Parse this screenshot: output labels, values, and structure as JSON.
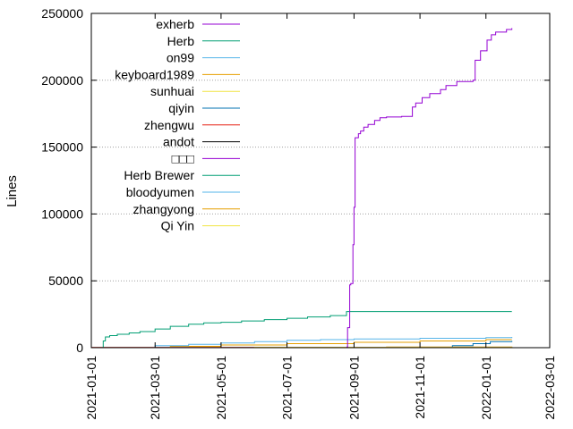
{
  "chart_data": {
    "type": "line",
    "title": "",
    "xlabel": "",
    "ylabel": "Lines",
    "xlim": [
      "2021-01-01",
      "2022-03-01"
    ],
    "ylim": [
      0,
      250000
    ],
    "x_ticks": [
      "2021-01-01",
      "2021-03-01",
      "2021-05-01",
      "2021-07-01",
      "2021-09-01",
      "2021-11-01",
      "2022-01-01",
      "2022-03-01"
    ],
    "y_ticks": [
      0,
      50000,
      100000,
      150000,
      200000,
      250000
    ],
    "grid": "horizontal dotted",
    "legend_position": "top-left",
    "series": [
      {
        "name": "exherb",
        "color": "#9400d3",
        "step": true,
        "x": [
          "2021-08-25",
          "2021-08-26",
          "2021-08-28",
          "2021-08-29",
          "2021-08-31",
          "2021-09-01",
          "2021-09-02",
          "2021-09-05",
          "2021-09-07",
          "2021-09-10",
          "2021-09-14",
          "2021-09-20",
          "2021-09-25",
          "2021-10-01",
          "2021-10-15",
          "2021-10-25",
          "2021-10-28",
          "2021-11-03",
          "2021-11-10",
          "2021-11-20",
          "2021-11-25",
          "2021-12-05",
          "2021-12-20",
          "2021-12-22",
          "2021-12-27",
          "2022-01-02",
          "2022-01-06",
          "2022-01-10",
          "2022-01-20",
          "2022-01-25"
        ],
        "y": [
          500,
          15000,
          47000,
          48000,
          77000,
          105000,
          157000,
          160000,
          162000,
          165000,
          167000,
          170000,
          172000,
          172500,
          173000,
          180000,
          183000,
          187000,
          190000,
          193000,
          196000,
          199000,
          200000,
          215000,
          222000,
          230000,
          234000,
          236000,
          238000,
          239000
        ]
      },
      {
        "name": "Herb",
        "color": "#009e73",
        "step": true,
        "x": [
          "2021-01-10",
          "2021-01-12",
          "2021-01-14",
          "2021-01-18",
          "2021-01-25",
          "2021-02-05",
          "2021-02-15",
          "2021-03-01",
          "2021-03-15",
          "2021-04-01",
          "2021-04-15",
          "2021-05-01",
          "2021-05-20",
          "2021-06-10",
          "2021-07-01",
          "2021-07-20",
          "2021-08-10",
          "2021-08-25",
          "2022-01-25"
        ],
        "y": [
          0,
          5000,
          8000,
          9000,
          10000,
          11000,
          12000,
          14000,
          16000,
          17500,
          18500,
          19000,
          20000,
          21000,
          22000,
          23000,
          24000,
          27000,
          27000
        ]
      },
      {
        "name": "on99",
        "color": "#56b4e9",
        "step": true,
        "x": [
          "2021-01-01",
          "2021-03-01",
          "2021-04-01",
          "2021-05-01",
          "2021-06-01",
          "2021-07-01",
          "2021-08-01",
          "2021-09-01",
          "2021-11-01",
          "2022-01-01",
          "2022-01-25"
        ],
        "y": [
          0,
          1500,
          2500,
          3500,
          4500,
          5500,
          6000,
          6500,
          7000,
          7500,
          8000
        ]
      },
      {
        "name": "keyboard1989",
        "color": "#e69f00",
        "step": true,
        "x": [
          "2021-01-01",
          "2021-03-15",
          "2021-05-01",
          "2021-07-01",
          "2021-09-01",
          "2021-11-01",
          "2022-01-01",
          "2022-01-25"
        ],
        "y": [
          0,
          1000,
          2000,
          3000,
          4000,
          5000,
          6000,
          6000
        ]
      },
      {
        "name": "sunhuai",
        "color": "#f0e442",
        "step": true,
        "x": [
          "2021-01-01",
          "2021-06-01",
          "2022-01-25"
        ],
        "y": [
          0,
          300,
          600
        ]
      },
      {
        "name": "qiyin",
        "color": "#0072b2",
        "step": true,
        "x": [
          "2021-01-01",
          "2021-12-01",
          "2021-12-20",
          "2022-01-05",
          "2022-01-25"
        ],
        "y": [
          0,
          1500,
          3000,
          4500,
          5000
        ]
      },
      {
        "name": "zhengwu",
        "color": "#e51e10",
        "step": true,
        "x": [
          "2021-01-01",
          "2022-01-25"
        ],
        "y": [
          200,
          400
        ]
      },
      {
        "name": "andot",
        "color": "#000000",
        "step": true,
        "x": [
          "2021-01-01",
          "2022-01-25"
        ],
        "y": [
          100,
          200
        ]
      },
      {
        "name": "□□□",
        "color": "#9400d3",
        "step": true,
        "x": [
          "2021-01-01",
          "2022-01-25"
        ],
        "y": [
          0,
          0
        ]
      },
      {
        "name": "Herb Brewer",
        "color": "#009e73",
        "step": true,
        "x": [
          "2021-01-01",
          "2022-01-25"
        ],
        "y": [
          0,
          0
        ]
      },
      {
        "name": "bloodyumen",
        "color": "#56b4e9",
        "step": true,
        "x": [
          "2021-01-01",
          "2022-01-25"
        ],
        "y": [
          0,
          0
        ]
      },
      {
        "name": "zhangyong",
        "color": "#e69f00",
        "step": true,
        "x": [
          "2021-01-01",
          "2021-10-01",
          "2022-01-25"
        ],
        "y": [
          0,
          500,
          800
        ]
      },
      {
        "name": "Qi Yin",
        "color": "#f0e442",
        "step": true,
        "x": [
          "2021-01-01",
          "2022-01-25"
        ],
        "y": [
          0,
          0
        ]
      }
    ]
  }
}
